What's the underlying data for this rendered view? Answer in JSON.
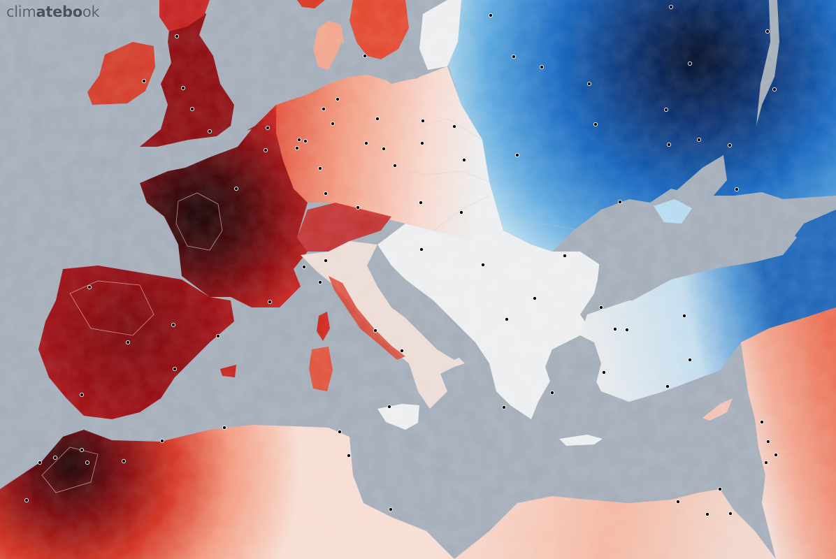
{
  "map": {
    "logo": {
      "prefix": "clim",
      "emphasis": "atebo",
      "suffix": "ok"
    },
    "colors": {
      "sea": "#a3adb9",
      "extreme_heat": "#1b0306",
      "hot": "#b30f14",
      "warm": "#e7402d",
      "mild_warm": "#f4a98f",
      "neutral": "#eeeff1",
      "mild_cold": "#b8dcef",
      "cold": "#1d6bc0",
      "extreme_cold": "#021233",
      "city_marker": "#000000"
    }
  }
}
